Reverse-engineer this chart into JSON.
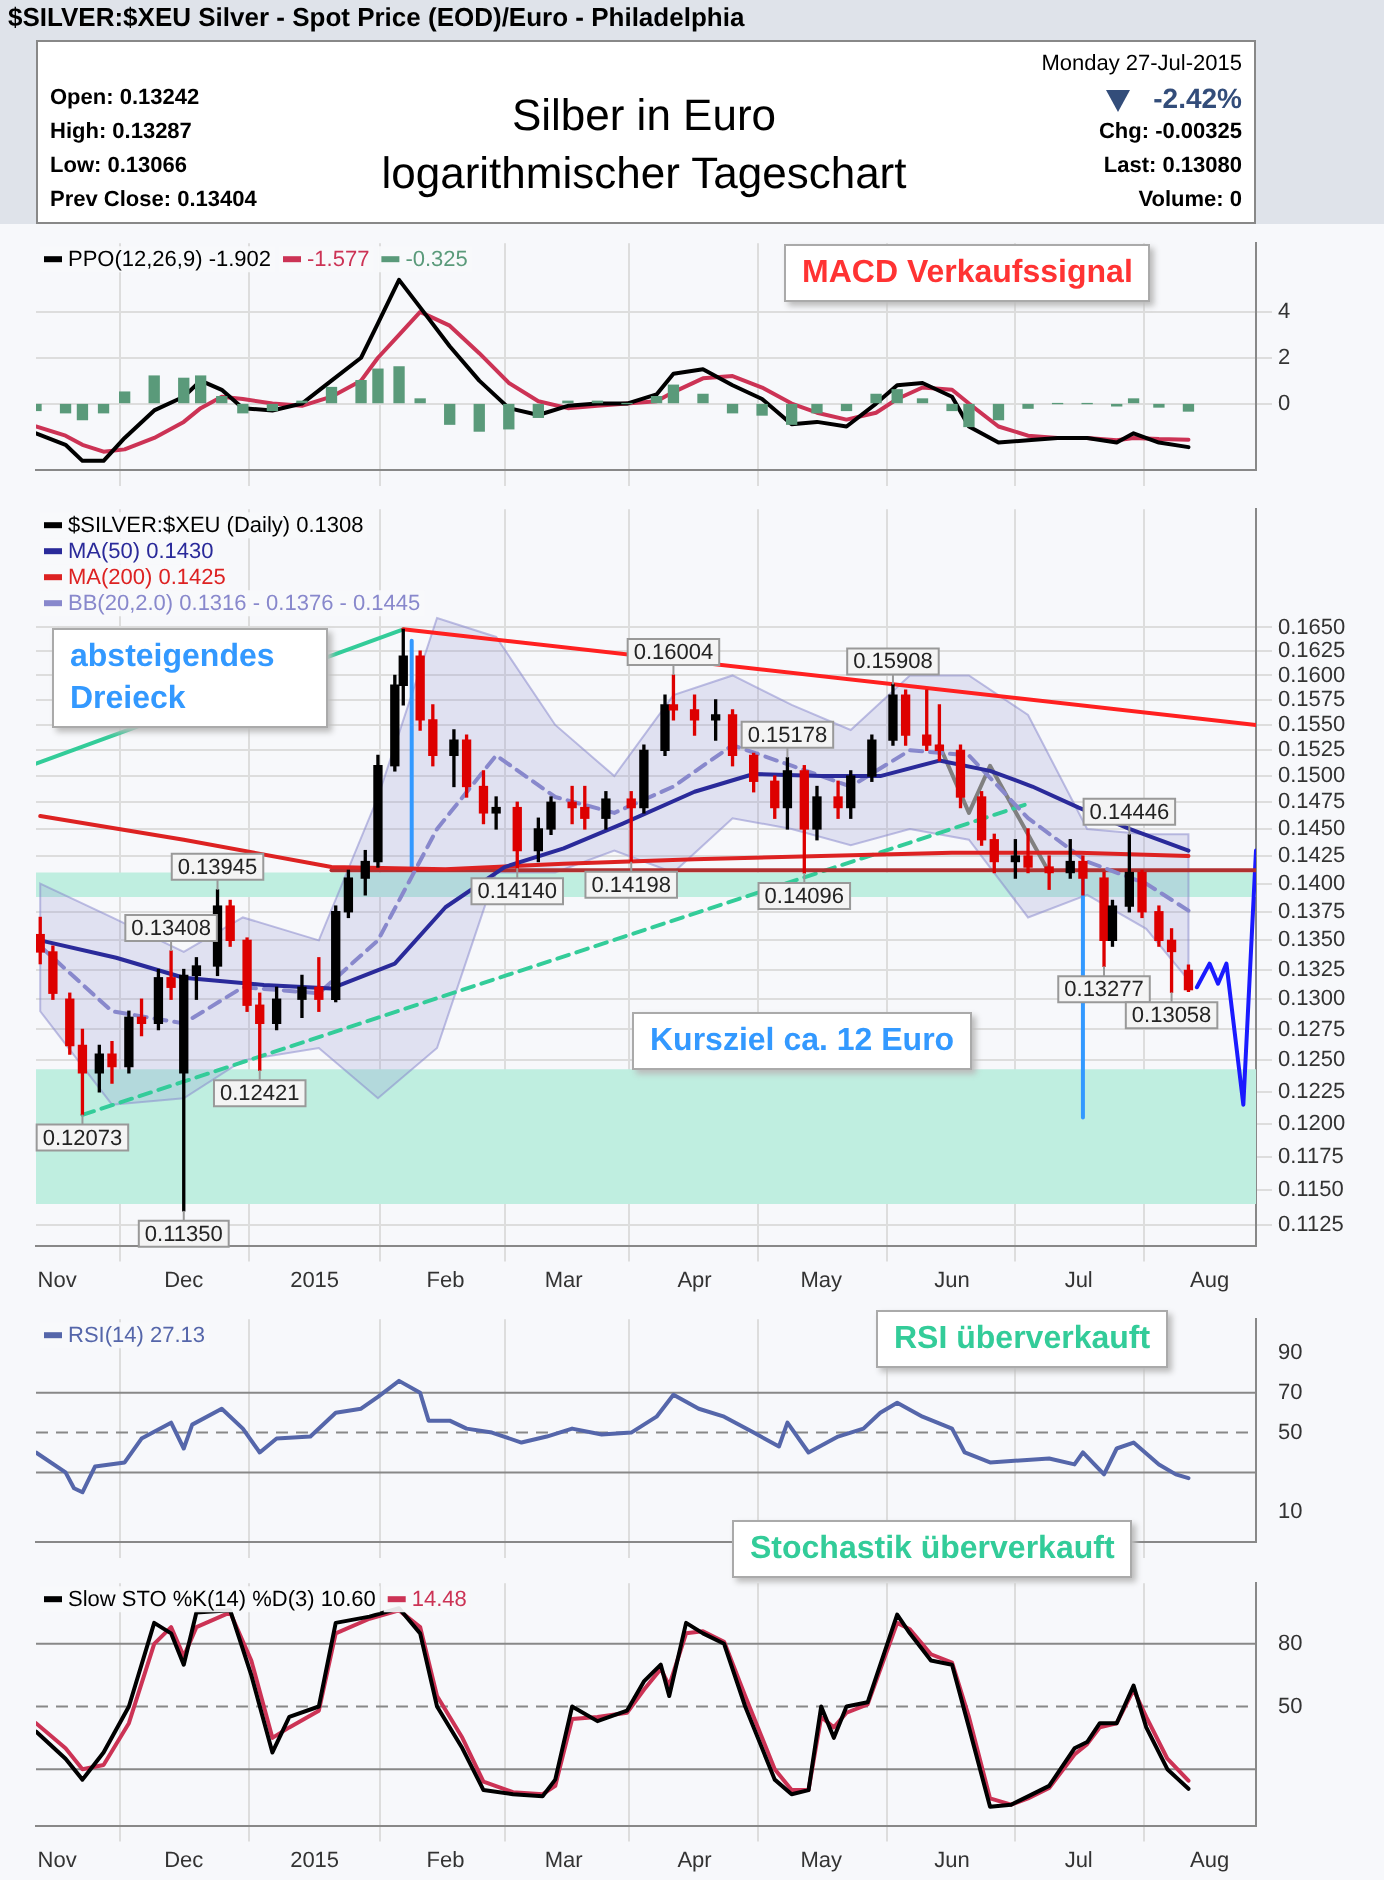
{
  "chart_data": [
    {
      "type": "line",
      "title": "Silber in Euro logarithmischer Tageschart",
      "subtitle": "$SILVER:$XEU Silver - Spot Price (EOD)/Euro - Philadelphia",
      "annotations": [
        "Open: 0.13242",
        "High: 0.13287",
        "Low: 0.13066",
        "Prev Close: 0.13404",
        "Monday 27-Jul-2015",
        "-2.42%",
        "Chg: -0.00325",
        "Last: 0.13080",
        "Volume: 0",
        "MACD Verkaufssignal"
      ],
      "x": [
        "2014-10-27",
        "2014-11-03",
        "2014-11-07",
        "2014-11-12",
        "2014-11-17",
        "2014-11-24",
        "2014-12-01",
        "2014-12-05",
        "2014-12-10",
        "2014-12-15",
        "2014-12-22",
        "2014-12-29",
        "2015-01-05",
        "2015-01-12",
        "2015-01-16",
        "2015-01-21",
        "2015-01-26",
        "2015-02-02",
        "2015-02-09",
        "2015-02-16",
        "2015-02-23",
        "2015-03-02",
        "2015-03-09",
        "2015-03-16",
        "2015-03-23",
        "2015-03-27",
        "2015-04-03",
        "2015-04-10",
        "2015-04-17",
        "2015-04-24",
        "2015-04-30",
        "2015-05-07",
        "2015-05-14",
        "2015-05-19",
        "2015-05-25",
        "2015-06-01",
        "2015-06-05",
        "2015-06-12",
        "2015-06-19",
        "2015-06-26",
        "2015-07-03",
        "2015-07-10",
        "2015-07-14",
        "2015-07-20",
        "2015-07-27"
      ],
      "series": [
        {
          "name": "PPO(12,26,9) -1.902",
          "color": "#000000",
          "values": [
            -1.3,
            -1.8,
            -2.5,
            -2.5,
            -1.5,
            -0.3,
            0.3,
            1.0,
            0.6,
            -0.2,
            -0.3,
            0.0,
            1.0,
            2.0,
            3.5,
            5.4,
            4.2,
            2.5,
            1.0,
            -0.2,
            -0.5,
            -0.1,
            0.0,
            0.0,
            0.4,
            1.3,
            1.5,
            0.8,
            0.2,
            -0.9,
            -0.8,
            -1.0,
            0.0,
            0.8,
            0.9,
            0.3,
            -1.0,
            -1.7,
            -1.6,
            -1.5,
            -1.5,
            -1.7,
            -1.3,
            -1.7,
            -1.902
          ]
        },
        {
          "name": "-1.577",
          "color": "#cc3355",
          "values": [
            -1.0,
            -1.4,
            -1.8,
            -2.1,
            -2.0,
            -1.5,
            -0.8,
            -0.2,
            0.3,
            0.2,
            0.0,
            -0.1,
            0.3,
            1.0,
            2.0,
            3.0,
            4.0,
            3.4,
            2.2,
            0.9,
            0.1,
            -0.2,
            -0.1,
            0.0,
            0.1,
            0.5,
            1.1,
            1.2,
            0.7,
            0.0,
            -0.4,
            -0.7,
            -0.4,
            0.2,
            0.7,
            0.6,
            0.0,
            -1.0,
            -1.4,
            -1.5,
            -1.5,
            -1.6,
            -1.5,
            -1.55,
            -1.577
          ]
        },
        {
          "type": "bar",
          "name": "-0.325",
          "color": "#5a9a7a",
          "values": [
            -0.3,
            -0.4,
            -0.7,
            -0.4,
            0.5,
            1.2,
            1.1,
            1.2,
            0.3,
            -0.4,
            -0.3,
            0.1,
            0.7,
            1.0,
            1.5,
            1.6,
            0.2,
            -0.9,
            -1.2,
            -1.1,
            -0.6,
            0.1,
            0.1,
            0.0,
            0.3,
            0.8,
            0.4,
            -0.4,
            -0.5,
            -0.9,
            -0.4,
            -0.3,
            0.4,
            0.6,
            0.2,
            -0.3,
            -1.0,
            -0.7,
            -0.2,
            0.0,
            0.0,
            -0.1,
            0.2,
            -0.15,
            -0.325
          ]
        }
      ],
      "xlim": [
        "2014-10-27",
        "2015-08-12"
      ],
      "xticks": [
        {
          "value": "2014-11-01",
          "label": null
        },
        {
          "value": "2014-12-01",
          "label": null
        },
        {
          "value": "2015-01-01",
          "label": null
        },
        {
          "value": "2015-02-01",
          "label": null
        },
        {
          "value": "2015-03-01",
          "label": null
        },
        {
          "value": "2015-04-01",
          "label": null
        },
        {
          "value": "2015-05-01",
          "label": null
        },
        {
          "value": "2015-06-01",
          "label": null
        },
        {
          "value": "2015-07-01",
          "label": null
        },
        {
          "value": "2015-08-01",
          "label": null
        }
      ],
      "ylim": [
        -2.9,
        7.0
      ],
      "yticks": [
        0,
        2,
        4
      ],
      "grid": true,
      "legend": "top left",
      "tick_labels": "y"
    },
    {
      "type": "candlestick",
      "annotations": [
        "absteigendes Dreieck",
        "Kursziel ca. 12 Euro",
        {
          "text": "0.16004",
          "x": "2015-03-27",
          "y": 0.16004
        },
        {
          "text": "0.15908",
          "x": "2015-05-18",
          "y": 0.15908
        },
        {
          "text": "0.15178",
          "x": "2015-04-23",
          "y": 0.15178
        },
        {
          "text": "0.14446",
          "x": "2015-07-13",
          "y": 0.14446
        },
        {
          "text": "0.13945",
          "x": "2014-12-09",
          "y": 0.13945
        },
        {
          "text": "0.13408",
          "x": "2014-11-28",
          "y": 0.13408
        },
        {
          "text": "0.14140",
          "x": "2015-02-18",
          "y": 0.1414
        },
        {
          "text": "0.14198",
          "x": "2015-03-17",
          "y": 0.14198
        },
        {
          "text": "0.14096",
          "x": "2015-04-27",
          "y": 0.14096
        },
        {
          "text": "0.13277",
          "x": "2015-07-07",
          "y": 0.13277
        },
        {
          "text": "0.13058",
          "x": "2015-07-23",
          "y": 0.13058
        },
        {
          "text": "0.12073",
          "x": "2014-11-07",
          "y": 0.12073
        },
        {
          "text": "0.12421",
          "x": "2014-12-19",
          "y": 0.12421
        },
        {
          "text": "0.11350",
          "x": "2014-12-01",
          "y": 0.1135
        }
      ],
      "series": [
        {
          "type": "candlestick",
          "name": "$SILVER:$XEU (Daily) 0.1308",
          "color": "#000000",
          "x": [
            "2014-10-28",
            "2014-10-31",
            "2014-11-04",
            "2014-11-07",
            "2014-11-11",
            "2014-11-14",
            "2014-11-18",
            "2014-11-21",
            "2014-11-25",
            "2014-11-28",
            "2014-12-01",
            "2014-12-04",
            "2014-12-09",
            "2014-12-12",
            "2014-12-16",
            "2014-12-19",
            "2014-12-23",
            "2014-12-29",
            "2015-01-02",
            "2015-01-06",
            "2015-01-09",
            "2015-01-13",
            "2015-01-16",
            "2015-01-20",
            "2015-01-22",
            "2015-01-26",
            "2015-01-29",
            "2015-02-03",
            "2015-02-06",
            "2015-02-10",
            "2015-02-13",
            "2015-02-18",
            "2015-02-23",
            "2015-02-26",
            "2015-03-03",
            "2015-03-06",
            "2015-03-11",
            "2015-03-17",
            "2015-03-20",
            "2015-03-25",
            "2015-03-27",
            "2015-04-01",
            "2015-04-06",
            "2015-04-10",
            "2015-04-15",
            "2015-04-20",
            "2015-04-23",
            "2015-04-27",
            "2015-04-30",
            "2015-05-05",
            "2015-05-08",
            "2015-05-13",
            "2015-05-18",
            "2015-05-21",
            "2015-05-26",
            "2015-05-29",
            "2015-06-03",
            "2015-06-08",
            "2015-06-11",
            "2015-06-16",
            "2015-06-19",
            "2015-06-24",
            "2015-06-29",
            "2015-07-02",
            "2015-07-07",
            "2015-07-09",
            "2015-07-13",
            "2015-07-16",
            "2015-07-20",
            "2015-07-23",
            "2015-07-27"
          ],
          "ohlc": [
            [
              0.1355,
              0.137,
              0.133,
              0.134
            ],
            [
              0.134,
              0.1345,
              0.13,
              0.1305
            ],
            [
              0.13,
              0.1305,
              0.1255,
              0.1262
            ],
            [
              0.1262,
              0.1275,
              0.12073,
              0.124
            ],
            [
              0.124,
              0.1262,
              0.1225,
              0.1255
            ],
            [
              0.1255,
              0.1265,
              0.1232,
              0.1245
            ],
            [
              0.1245,
              0.129,
              0.124,
              0.1285
            ],
            [
              0.1285,
              0.13,
              0.127,
              0.128
            ],
            [
              0.128,
              0.1325,
              0.1275,
              0.1318
            ],
            [
              0.1318,
              0.13408,
              0.13,
              0.131
            ],
            [
              0.124,
              0.1325,
              0.1135,
              0.132
            ],
            [
              0.132,
              0.1335,
              0.13,
              0.1328
            ],
            [
              0.1328,
              0.13945,
              0.132,
              0.138
            ],
            [
              0.138,
              0.1385,
              0.1345,
              0.135
            ],
            [
              0.135,
              0.1352,
              0.129,
              0.1295
            ],
            [
              0.1295,
              0.1305,
              0.12421,
              0.128
            ],
            [
              0.128,
              0.131,
              0.1275,
              0.13
            ],
            [
              0.13,
              0.132,
              0.1285,
              0.131
            ],
            [
              0.131,
              0.1335,
              0.129,
              0.13
            ],
            [
              0.13,
              0.138,
              0.1298,
              0.1375
            ],
            [
              0.1375,
              0.1412,
              0.137,
              0.1405
            ],
            [
              0.1405,
              0.143,
              0.139,
              0.142
            ],
            [
              0.142,
              0.152,
              0.1415,
              0.151
            ],
            [
              0.151,
              0.16,
              0.1505,
              0.159
            ],
            [
              0.159,
              0.1648,
              0.157,
              0.162
            ],
            [
              0.162,
              0.1625,
              0.1545,
              0.1555
            ],
            [
              0.1555,
              0.157,
              0.151,
              0.152
            ],
            [
              0.152,
              0.1545,
              0.149,
              0.1535
            ],
            [
              0.1535,
              0.154,
              0.148,
              0.149
            ],
            [
              0.149,
              0.1505,
              0.1455,
              0.1465
            ],
            [
              0.1465,
              0.148,
              0.145,
              0.147
            ],
            [
              0.147,
              0.1475,
              0.1414,
              0.143
            ],
            [
              0.143,
              0.146,
              0.142,
              0.145
            ],
            [
              0.145,
              0.148,
              0.1445,
              0.1475
            ],
            [
              0.1475,
              0.149,
              0.1455,
              0.147
            ],
            [
              0.147,
              0.149,
              0.145,
              0.146
            ],
            [
              0.146,
              0.1485,
              0.145,
              0.1478
            ],
            [
              0.1478,
              0.1485,
              0.14198,
              0.147
            ],
            [
              0.147,
              0.153,
              0.1465,
              0.1525
            ],
            [
              0.1525,
              0.158,
              0.152,
              0.157
            ],
            [
              0.157,
              0.16004,
              0.1555,
              0.1565
            ],
            [
              0.1565,
              0.158,
              0.154,
              0.1555
            ],
            [
              0.1555,
              0.1575,
              0.1535,
              0.156
            ],
            [
              0.156,
              0.1565,
              0.151,
              0.152
            ],
            [
              0.152,
              0.1522,
              0.1485,
              0.1495
            ],
            [
              0.1495,
              0.15,
              0.146,
              0.147
            ],
            [
              0.147,
              0.15178,
              0.145,
              0.1505
            ],
            [
              0.1505,
              0.151,
              0.14096,
              0.145
            ],
            [
              0.145,
              0.149,
              0.144,
              0.148
            ],
            [
              0.148,
              0.1495,
              0.146,
              0.147
            ],
            [
              0.147,
              0.1505,
              0.146,
              0.15
            ],
            [
              0.15,
              0.154,
              0.1495,
              0.1535
            ],
            [
              0.1535,
              0.15908,
              0.153,
              0.158
            ],
            [
              0.158,
              0.1585,
              0.153,
              0.154
            ],
            [
              0.154,
              0.1585,
              0.1525,
              0.153
            ],
            [
              0.153,
              0.157,
              0.1515,
              0.1525
            ],
            [
              0.1525,
              0.153,
              0.147,
              0.148
            ],
            [
              0.148,
              0.1485,
              0.1435,
              0.144
            ],
            [
              0.144,
              0.1445,
              0.141,
              0.142
            ],
            [
              0.142,
              0.144,
              0.1405,
              0.1425
            ],
            [
              0.1425,
              0.145,
              0.141,
              0.1415
            ],
            [
              0.1415,
              0.1425,
              0.1395,
              0.141
            ],
            [
              0.141,
              0.144,
              0.1405,
              0.142
            ],
            [
              0.142,
              0.1425,
              0.139,
              0.1405
            ],
            [
              0.1405,
              0.141,
              0.13277,
              0.135
            ],
            [
              0.135,
              0.1385,
              0.1345,
              0.138
            ],
            [
              0.138,
              0.14446,
              0.1375,
              0.141
            ],
            [
              0.141,
              0.1412,
              0.137,
              0.1375
            ],
            [
              0.1375,
              0.138,
              0.1345,
              0.135
            ],
            [
              0.135,
              0.136,
              0.13058,
              0.13404
            ],
            [
              0.13242,
              0.13287,
              0.13066,
              0.1308
            ]
          ],
          "colors": [
            "#dd0000",
            "#dd0000",
            "#dd0000",
            "#dd0000",
            "#000000",
            "#dd0000",
            "#000000",
            "#dd0000",
            "#000000",
            "#dd0000",
            "#000000",
            "#000000",
            "#000000",
            "#dd0000",
            "#dd0000",
            "#dd0000",
            "#000000",
            "#000000",
            "#dd0000",
            "#000000",
            "#000000",
            "#000000",
            "#000000",
            "#000000",
            "#000000",
            "#dd0000",
            "#dd0000",
            "#000000",
            "#dd0000",
            "#dd0000",
            "#000000",
            "#dd0000",
            "#000000",
            "#000000",
            "#dd0000",
            "#dd0000",
            "#000000",
            "#dd0000",
            "#000000",
            "#000000",
            "#dd0000",
            "#dd0000",
            "#000000",
            "#dd0000",
            "#dd0000",
            "#dd0000",
            "#000000",
            "#dd0000",
            "#000000",
            "#dd0000",
            "#000000",
            "#000000",
            "#000000",
            "#dd0000",
            "#dd0000",
            "#dd0000",
            "#dd0000",
            "#dd0000",
            "#dd0000",
            "#000000",
            "#dd0000",
            "#dd0000",
            "#000000",
            "#dd0000",
            "#dd0000",
            "#000000",
            "#000000",
            "#dd0000",
            "#dd0000",
            "#dd0000",
            "#dd0000"
          ]
        },
        {
          "type": "line",
          "name": "MA(50) 0.1430",
          "color": "#2a2a9a",
          "x": [
            "2014-10-28",
            "2014-11-15",
            "2014-12-01",
            "2014-12-20",
            "2015-01-05",
            "2015-01-20",
            "2015-02-01",
            "2015-02-15",
            "2015-03-01",
            "2015-03-15",
            "2015-04-01",
            "2015-04-15",
            "2015-05-01",
            "2015-05-15",
            "2015-05-29",
            "2015-06-10",
            "2015-06-20",
            "2015-07-01",
            "2015-07-13",
            "2015-07-27"
          ],
          "values": [
            0.135,
            0.1335,
            0.1318,
            0.1312,
            0.1309,
            0.133,
            0.1379,
            0.1415,
            0.1432,
            0.1455,
            0.1485,
            0.1502,
            0.15,
            0.15,
            0.1515,
            0.1505,
            0.149,
            0.147,
            0.145,
            0.143
          ]
        },
        {
          "type": "line",
          "name": "MA(200) 0.1425",
          "color": "#dd2222",
          "x": [
            "2014-10-28",
            "2014-12-01",
            "2015-01-05",
            "2015-02-01",
            "2015-03-01",
            "2015-04-01",
            "2015-05-01",
            "2015-06-01",
            "2015-07-01",
            "2015-07-27"
          ],
          "values": [
            0.1462,
            0.144,
            0.1415,
            0.1413,
            0.1418,
            0.1422,
            0.1425,
            0.1428,
            0.1428,
            0.1425
          ]
        },
        {
          "type": "line",
          "name": "BB(20,2.0) 0.1316 - 0.1376 - 0.1445",
          "color": "#8888cc",
          "line_style": "dashed",
          "x": [
            "2014-10-28",
            "2014-11-14",
            "2014-12-01",
            "2014-12-15",
            "2015-01-02",
            "2015-01-16",
            "2015-01-30",
            "2015-02-13",
            "2015-02-27",
            "2015-03-13",
            "2015-03-27",
            "2015-04-10",
            "2015-04-24",
            "2015-05-08",
            "2015-05-22",
            "2015-06-05",
            "2015-06-19",
            "2015-07-03",
            "2015-07-17",
            "2015-07-27"
          ],
          "values": [
            0.1345,
            0.129,
            0.128,
            0.131,
            0.1305,
            0.135,
            0.145,
            0.152,
            0.148,
            0.1465,
            0.149,
            0.153,
            0.151,
            0.149,
            0.1525,
            0.152,
            0.146,
            0.142,
            0.14,
            0.1376
          ],
          "lower": [
            0.129,
            0.1215,
            0.122,
            0.125,
            0.126,
            0.122,
            0.126,
            0.141,
            0.141,
            0.143,
            0.141,
            0.146,
            0.145,
            0.1435,
            0.145,
            0.144,
            0.137,
            0.139,
            0.136,
            0.1316
          ],
          "upper": [
            0.14,
            0.137,
            0.134,
            0.137,
            0.135,
            0.148,
            0.166,
            0.164,
            0.155,
            0.15,
            0.158,
            0.16,
            0.157,
            0.1545,
            0.16,
            0.16,
            0.156,
            0.145,
            0.1445,
            0.1445
          ]
        },
        {
          "type": "line",
          "color": "#ff2020",
          "x": [
            "2015-01-22",
            "2015-08-12"
          ],
          "values": [
            0.1648,
            0.155
          ]
        },
        {
          "type": "line",
          "color": "#b03030",
          "x": [
            "2015-01-05",
            "2015-08-12"
          ],
          "values": [
            0.1412,
            0.1412
          ]
        },
        {
          "type": "line",
          "color": "#33cc99",
          "x": [
            "2014-10-27",
            "2015-01-22"
          ],
          "values": [
            0.1512,
            0.1648
          ]
        },
        {
          "type": "line",
          "color": "#33cc99",
          "line_style": "dashed",
          "x": [
            "2014-11-07",
            "2015-06-20"
          ],
          "values": [
            0.1207,
            0.1475
          ]
        },
        {
          "type": "line",
          "color": "#3399ff",
          "x": [
            "2015-01-24",
            "2015-01-24"
          ],
          "values": [
            0.1412,
            0.1636
          ]
        },
        {
          "type": "line",
          "color": "#3399ff",
          "x": [
            "2015-07-02",
            "2015-07-02"
          ],
          "values": [
            0.1412,
            0.1205
          ]
        },
        {
          "type": "line",
          "color": "#808080",
          "x": [
            "2015-05-29",
            "2015-06-05",
            "2015-06-10",
            "2015-06-24"
          ],
          "values": [
            0.153,
            0.1465,
            0.151,
            0.141
          ]
        },
        {
          "type": "line",
          "color": "#1a1aff",
          "x": [
            "2015-07-29",
            "2015-08-01",
            "2015-08-03",
            "2015-08-05",
            "2015-08-09",
            "2015-08-12"
          ],
          "values": [
            0.131,
            0.133,
            0.1313,
            0.133,
            0.1215,
            0.143
          ]
        }
      ],
      "bands": [
        {
          "axis": "y",
          "from": 0.1388,
          "to": 0.141,
          "color": "#bfeee0"
        },
        {
          "axis": "y",
          "from": 0.114,
          "to": 0.1243,
          "color": "#bfeee0"
        }
      ],
      "xlim": [
        "2014-10-27",
        "2015-08-12"
      ],
      "xticks": [
        {
          "value": "2014-11-01",
          "label": "Nov"
        },
        {
          "value": "2014-12-01",
          "label": "Dec"
        },
        {
          "value": "2015-01-01",
          "label": "2015"
        },
        {
          "value": "2015-02-01",
          "label": "Feb"
        },
        {
          "value": "2015-03-01",
          "label": "Mar"
        },
        {
          "value": "2015-04-01",
          "label": "Apr"
        },
        {
          "value": "2015-05-01",
          "label": "May"
        },
        {
          "value": "2015-06-01",
          "label": "Jun"
        },
        {
          "value": "2015-07-01",
          "label": "Jul"
        },
        {
          "value": "2015-08-01",
          "label": "Aug"
        }
      ],
      "ylim": [
        0.111,
        0.178
      ],
      "yticks": [
        {
          "value": 0.1125,
          "label": "0.1125"
        },
        {
          "value": 0.115,
          "label": "0.1150"
        },
        {
          "value": 0.1175,
          "label": "0.1175"
        },
        {
          "value": 0.12,
          "label": "0.1200"
        },
        {
          "value": 0.1225,
          "label": "0.1225"
        },
        {
          "value": 0.125,
          "label": "0.1250"
        },
        {
          "value": 0.1275,
          "label": "0.1275"
        },
        {
          "value": 0.13,
          "label": "0.1300"
        },
        {
          "value": 0.1325,
          "label": "0.1325"
        },
        {
          "value": 0.135,
          "label": "0.1350"
        },
        {
          "value": 0.1375,
          "label": "0.1375"
        },
        {
          "value": 0.14,
          "label": "0.1400"
        },
        {
          "value": 0.1425,
          "label": "0.1425"
        },
        {
          "value": 0.145,
          "label": "0.1450"
        },
        {
          "value": 0.1475,
          "label": "0.1475"
        },
        {
          "value": 0.15,
          "label": "0.1500"
        },
        {
          "value": 0.1525,
          "label": "0.1525"
        },
        {
          "value": 0.155,
          "label": "0.1550"
        },
        {
          "value": 0.1575,
          "label": "0.1575"
        },
        {
          "value": 0.16,
          "label": "0.1600"
        },
        {
          "value": 0.1625,
          "label": "0.1625"
        },
        {
          "value": 0.165,
          "label": "0.1650"
        }
      ],
      "log": true,
      "grid": true,
      "legend": "top left"
    },
    {
      "type": "line",
      "annotations": [
        "RSI überverkauft"
      ],
      "x": [
        "2014-10-27",
        "2014-11-03",
        "2014-11-05",
        "2014-11-07",
        "2014-11-10",
        "2014-11-17",
        "2014-11-21",
        "2014-11-28",
        "2014-12-01",
        "2014-12-03",
        "2014-12-10",
        "2014-12-15",
        "2014-12-19",
        "2014-12-23",
        "2014-12-31",
        "2015-01-06",
        "2015-01-12",
        "2015-01-16",
        "2015-01-21",
        "2015-01-26",
        "2015-01-28",
        "2015-02-02",
        "2015-02-06",
        "2015-02-12",
        "2015-02-19",
        "2015-02-25",
        "2015-03-03",
        "2015-03-10",
        "2015-03-17",
        "2015-03-23",
        "2015-03-27",
        "2015-04-02",
        "2015-04-08",
        "2015-04-15",
        "2015-04-21",
        "2015-04-23",
        "2015-04-28",
        "2015-05-05",
        "2015-05-11",
        "2015-05-15",
        "2015-05-19",
        "2015-05-25",
        "2015-06-01",
        "2015-06-04",
        "2015-06-10",
        "2015-06-17",
        "2015-06-24",
        "2015-06-30",
        "2015-07-02",
        "2015-07-07",
        "2015-07-10",
        "2015-07-14",
        "2015-07-20",
        "2015-07-24",
        "2015-07-27"
      ],
      "series": [
        {
          "name": "RSI(14) 27.13",
          "color": "#5566aa",
          "values": [
            40,
            30,
            22,
            20,
            33,
            35,
            47,
            55,
            42,
            54,
            62,
            52,
            40,
            47,
            48,
            60,
            62,
            68,
            76,
            70,
            56,
            56,
            52,
            50,
            45,
            48,
            52,
            49,
            50,
            58,
            69,
            62,
            58,
            50,
            43,
            55,
            40,
            48,
            52,
            60,
            65,
            58,
            52,
            40,
            35,
            36,
            37,
            34,
            40,
            29,
            42,
            45,
            34,
            29,
            27.13
          ]
        }
      ],
      "xlim": [
        "2014-10-27",
        "2015-08-12"
      ],
      "xticks": [
        {
          "value": "2014-11-01",
          "label": null
        },
        {
          "value": "2014-12-01",
          "label": null
        },
        {
          "value": "2015-01-01",
          "label": null
        },
        {
          "value": "2015-02-01",
          "label": null
        },
        {
          "value": "2015-03-01",
          "label": null
        },
        {
          "value": "2015-04-01",
          "label": null
        },
        {
          "value": "2015-05-01",
          "label": null
        },
        {
          "value": "2015-06-01",
          "label": null
        },
        {
          "value": "2015-07-01",
          "label": null
        },
        {
          "value": "2015-08-01",
          "label": null
        }
      ],
      "ylim": [
        -5,
        107
      ],
      "yticks": [
        10,
        {
          "value": 30,
          "label": null
        },
        50,
        70,
        90
      ],
      "ref_lines": [
        {
          "axis": "y",
          "value": 70,
          "color": "#888888"
        },
        {
          "axis": "y",
          "value": 50,
          "color": "#888888",
          "line_style": "dashed"
        },
        {
          "axis": "y",
          "value": 30,
          "color": "#888888"
        }
      ],
      "grid": "x",
      "legend": "top left",
      "tick_labels": "y"
    },
    {
      "type": "line",
      "annotations": [
        "Stochastik überverkauft"
      ],
      "x": [
        "2014-10-27",
        "2014-11-03",
        "2014-11-07",
        "2014-11-12",
        "2014-11-18",
        "2014-11-24",
        "2014-11-28",
        "2014-12-01",
        "2014-12-04",
        "2014-12-12",
        "2014-12-17",
        "2014-12-22",
        "2014-12-26",
        "2015-01-02",
        "2015-01-06",
        "2015-01-14",
        "2015-01-21",
        "2015-01-26",
        "2015-01-30",
        "2015-02-05",
        "2015-02-10",
        "2015-02-17",
        "2015-02-24",
        "2015-02-27",
        "2015-03-03",
        "2015-03-09",
        "2015-03-16",
        "2015-03-20",
        "2015-03-24",
        "2015-03-26",
        "2015-03-30",
        "2015-04-03",
        "2015-04-08",
        "2015-04-13",
        "2015-04-20",
        "2015-04-24",
        "2015-04-28",
        "2015-05-01",
        "2015-05-04",
        "2015-05-07",
        "2015-05-12",
        "2015-05-19",
        "2015-05-22",
        "2015-05-27",
        "2015-06-01",
        "2015-06-05",
        "2015-06-10",
        "2015-06-15",
        "2015-06-19",
        "2015-06-24",
        "2015-06-30",
        "2015-07-03",
        "2015-07-06",
        "2015-07-10",
        "2015-07-14",
        "2015-07-17",
        "2015-07-22",
        "2015-07-27"
      ],
      "series": [
        {
          "name": "Slow STO %K(14) %D(3) 10.60",
          "color": "#000000",
          "values": [
            38,
            25,
            15,
            28,
            50,
            90,
            85,
            70,
            95,
            96,
            65,
            28,
            45,
            50,
            90,
            93,
            97,
            85,
            50,
            30,
            10,
            8,
            7,
            15,
            50,
            43,
            48,
            62,
            70,
            55,
            90,
            85,
            80,
            50,
            15,
            8,
            10,
            50,
            35,
            50,
            52,
            94,
            85,
            72,
            70,
            40,
            2,
            3,
            7,
            12,
            30,
            33,
            42,
            42,
            60,
            40,
            20,
            10.6
          ]
        },
        {
          "name": "14.48",
          "color": "#cc3355",
          "values": [
            42,
            30,
            20,
            22,
            42,
            80,
            88,
            74,
            88,
            95,
            72,
            35,
            40,
            48,
            85,
            92,
            96,
            88,
            55,
            35,
            14,
            9,
            8,
            12,
            44,
            45,
            47,
            58,
            68,
            60,
            85,
            86,
            81,
            55,
            20,
            10,
            10,
            45,
            40,
            47,
            51,
            90,
            87,
            75,
            71,
            45,
            6,
            3,
            6,
            11,
            27,
            32,
            40,
            42,
            58,
            45,
            25,
            14.48
          ]
        }
      ],
      "xlim": [
        "2014-10-27",
        "2015-08-12"
      ],
      "xticks": [
        {
          "value": "2014-11-01",
          "label": "Nov"
        },
        {
          "value": "2014-12-01",
          "label": "Dec"
        },
        {
          "value": "2015-01-01",
          "label": "2015"
        },
        {
          "value": "2015-02-01",
          "label": "Feb"
        },
        {
          "value": "2015-03-01",
          "label": "Mar"
        },
        {
          "value": "2015-04-01",
          "label": "Apr"
        },
        {
          "value": "2015-05-01",
          "label": "May"
        },
        {
          "value": "2015-06-01",
          "label": "Jun"
        },
        {
          "value": "2015-07-01",
          "label": "Jul"
        },
        {
          "value": "2015-08-01",
          "label": "Aug"
        }
      ],
      "ylim": [
        -7,
        109
      ],
      "yticks": [
        {
          "value": 20,
          "label": null
        },
        50,
        80
      ],
      "ref_lines": [
        {
          "axis": "y",
          "value": 80,
          "color": "#888888"
        },
        {
          "axis": "y",
          "value": 50,
          "color": "#888888",
          "line_style": "dashed"
        },
        {
          "axis": "y",
          "value": 20,
          "color": "#888888"
        }
      ],
      "grid": "x",
      "legend": "top left"
    }
  ]
}
